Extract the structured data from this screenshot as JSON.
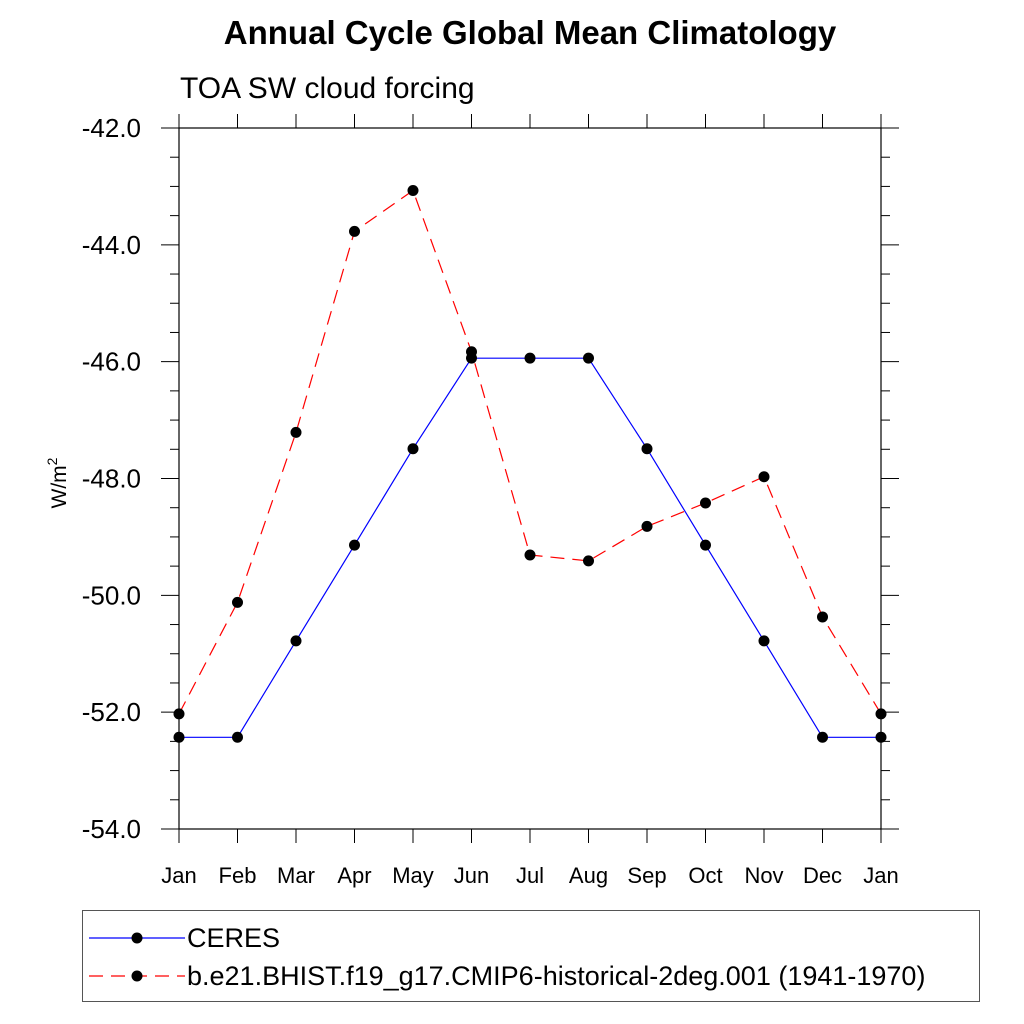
{
  "chart_data": {
    "type": "line",
    "title": "Annual Cycle Global Mean Climatology",
    "subtitle": "TOA SW cloud forcing",
    "ylabel": "W/m",
    "ylabel_sup": "2",
    "xlabel": "",
    "categories": [
      "Jan",
      "Feb",
      "Mar",
      "Apr",
      "May",
      "Jun",
      "Jul",
      "Aug",
      "Sep",
      "Oct",
      "Nov",
      "Dec",
      "Jan"
    ],
    "ylim": [
      -54.0,
      -42.0
    ],
    "yticks": [
      "-42.0",
      "-44.0",
      "-46.0",
      "-48.0",
      "-50.0",
      "-52.0",
      "-54.0"
    ],
    "series": [
      {
        "name": "CERES",
        "color": "#0000ff",
        "dash": "solid",
        "values": [
          -52.43,
          -52.43,
          -50.78,
          -49.14,
          -47.49,
          -45.94,
          -45.94,
          -45.94,
          -47.49,
          -49.14,
          -50.78,
          -52.43,
          -52.43
        ]
      },
      {
        "name": "b.e21.BHIST.f19_g17.CMIP6-historical-2deg.001 (1941-1970)",
        "color": "#ff0000",
        "dash": "dashed",
        "values": [
          -52.03,
          -50.12,
          -47.21,
          -43.77,
          -43.07,
          -45.83,
          -49.31,
          -49.41,
          -48.82,
          -48.42,
          -47.97,
          -50.37,
          -52.03
        ]
      }
    ],
    "grid": false,
    "legend_position": "bottom"
  }
}
